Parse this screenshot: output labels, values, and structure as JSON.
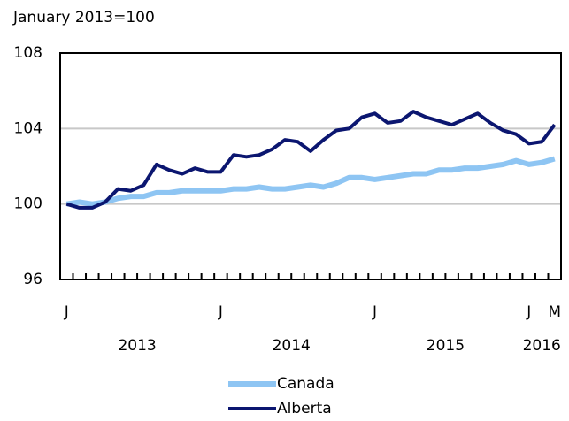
{
  "chart_data": {
    "type": "line",
    "title": "January 2013=100",
    "categories": [
      "J",
      null,
      null,
      null,
      null,
      null,
      null,
      null,
      null,
      null,
      null,
      null,
      "J",
      null,
      null,
      null,
      null,
      null,
      null,
      null,
      null,
      null,
      null,
      null,
      "J",
      null,
      null,
      null,
      null,
      null,
      null,
      null,
      null,
      null,
      null,
      null,
      "J",
      null,
      "M"
    ],
    "years": [
      "2013",
      "2014",
      "2015",
      "2016"
    ],
    "series": [
      {
        "name": "Canada",
        "color": "#8ec5f3",
        "values": [
          100.0,
          100.1,
          100.0,
          100.1,
          100.3,
          100.4,
          100.4,
          100.6,
          100.6,
          100.7,
          100.7,
          100.7,
          100.7,
          100.8,
          100.8,
          100.9,
          100.8,
          100.8,
          100.9,
          101.0,
          100.9,
          101.1,
          101.4,
          101.4,
          101.3,
          101.4,
          101.5,
          101.6,
          101.6,
          101.8,
          101.8,
          101.9,
          101.9,
          102.0,
          102.1,
          102.3,
          102.1,
          102.2,
          102.4
        ]
      },
      {
        "name": "Alberta",
        "color": "#0b1670",
        "values": [
          100.0,
          99.8,
          99.8,
          100.1,
          100.8,
          100.7,
          101.0,
          102.1,
          101.8,
          101.6,
          101.9,
          101.7,
          101.7,
          102.6,
          102.5,
          102.6,
          102.9,
          103.4,
          103.3,
          102.8,
          103.4,
          103.9,
          104.0,
          104.6,
          104.8,
          104.3,
          104.4,
          104.9,
          104.6,
          104.4,
          104.2,
          104.5,
          104.8,
          104.3,
          103.9,
          103.7,
          103.2,
          103.3,
          104.2
        ]
      }
    ],
    "ylim": [
      96,
      108
    ],
    "yticks": [
      96,
      100,
      104,
      108
    ],
    "grid": true
  }
}
